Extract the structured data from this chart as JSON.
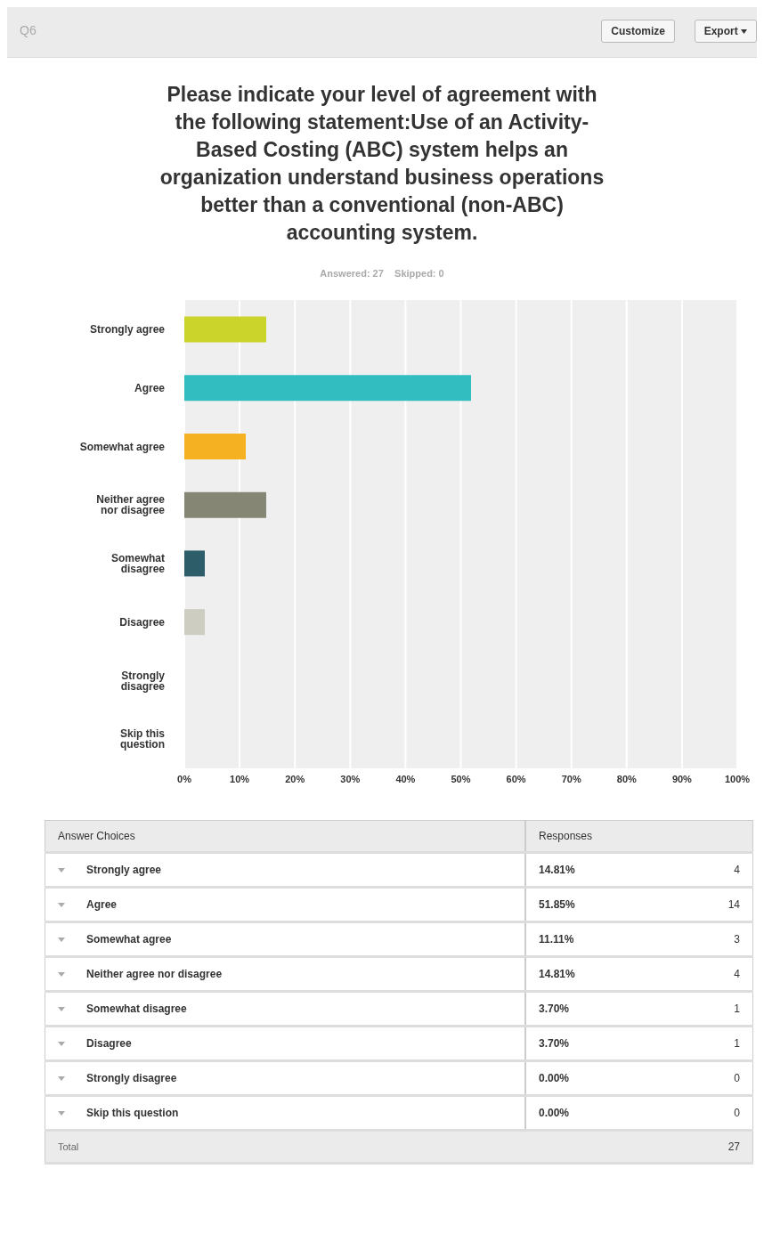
{
  "chart_data": [
    {
      "type": "bar",
      "orientation": "horizontal",
      "title": "Please indicate your level of agreement with the following statement:Use of an Activity-Based Costing (ABC) system helps an organization understand business operations better than a conventional (non-ABC) accounting system.",
      "subtitle": "Answered: 27    Skipped: 0",
      "annotations": [
        "Q6",
        "Customize",
        "Export"
      ],
      "categories": [
        "Strongly agree",
        "Agree",
        "Somewhat agree",
        "Neither agree nor disagree",
        "Somewhat disagree",
        "Disagree",
        "Strongly disagree",
        "Skip this question"
      ],
      "values": [
        14.81,
        51.85,
        11.11,
        14.81,
        3.7,
        3.7,
        0.0,
        0.0
      ],
      "value_labels": [
        "14.81%",
        "51.85%",
        "11.11%",
        "14.81%",
        "3.70%",
        "3.70%",
        "0.00%",
        "0.00%"
      ],
      "colors": [
        "#cbd42a",
        "#32bec1",
        "#f6b122",
        "#868675",
        "#2c5d69",
        "#cecdc1",
        "#9a9a9a",
        "#bbbbbb"
      ],
      "xlim": [
        0,
        100
      ],
      "xticks": [
        {
          "value": 0,
          "label": "0%"
        },
        {
          "value": 10,
          "label": "10%"
        },
        {
          "value": 20,
          "label": "20%"
        },
        {
          "value": 30,
          "label": "30%"
        },
        {
          "value": 40,
          "label": "40%"
        },
        {
          "value": 50,
          "label": "50%"
        },
        {
          "value": 60,
          "label": "60%"
        },
        {
          "value": 70,
          "label": "70%"
        },
        {
          "value": 80,
          "label": "80%"
        },
        {
          "value": 90,
          "label": "90%"
        },
        {
          "value": 100,
          "label": "100%"
        }
      ],
      "grid": "x"
    },
    {
      "type": "other",
      "xlabel": "Answer Choices",
      "ylabel": "Responses",
      "categories": [
        "Strongly agree",
        "Agree",
        "Somewhat agree",
        "Neither agree nor disagree",
        "Somewhat disagree",
        "Disagree",
        "Strongly disagree",
        "Skip this question"
      ],
      "values": [
        4,
        14,
        3,
        4,
        1,
        1,
        0,
        0
      ],
      "data_labels": true,
      "annotations": [
        "Total",
        "27"
      ]
    }
  ]
}
